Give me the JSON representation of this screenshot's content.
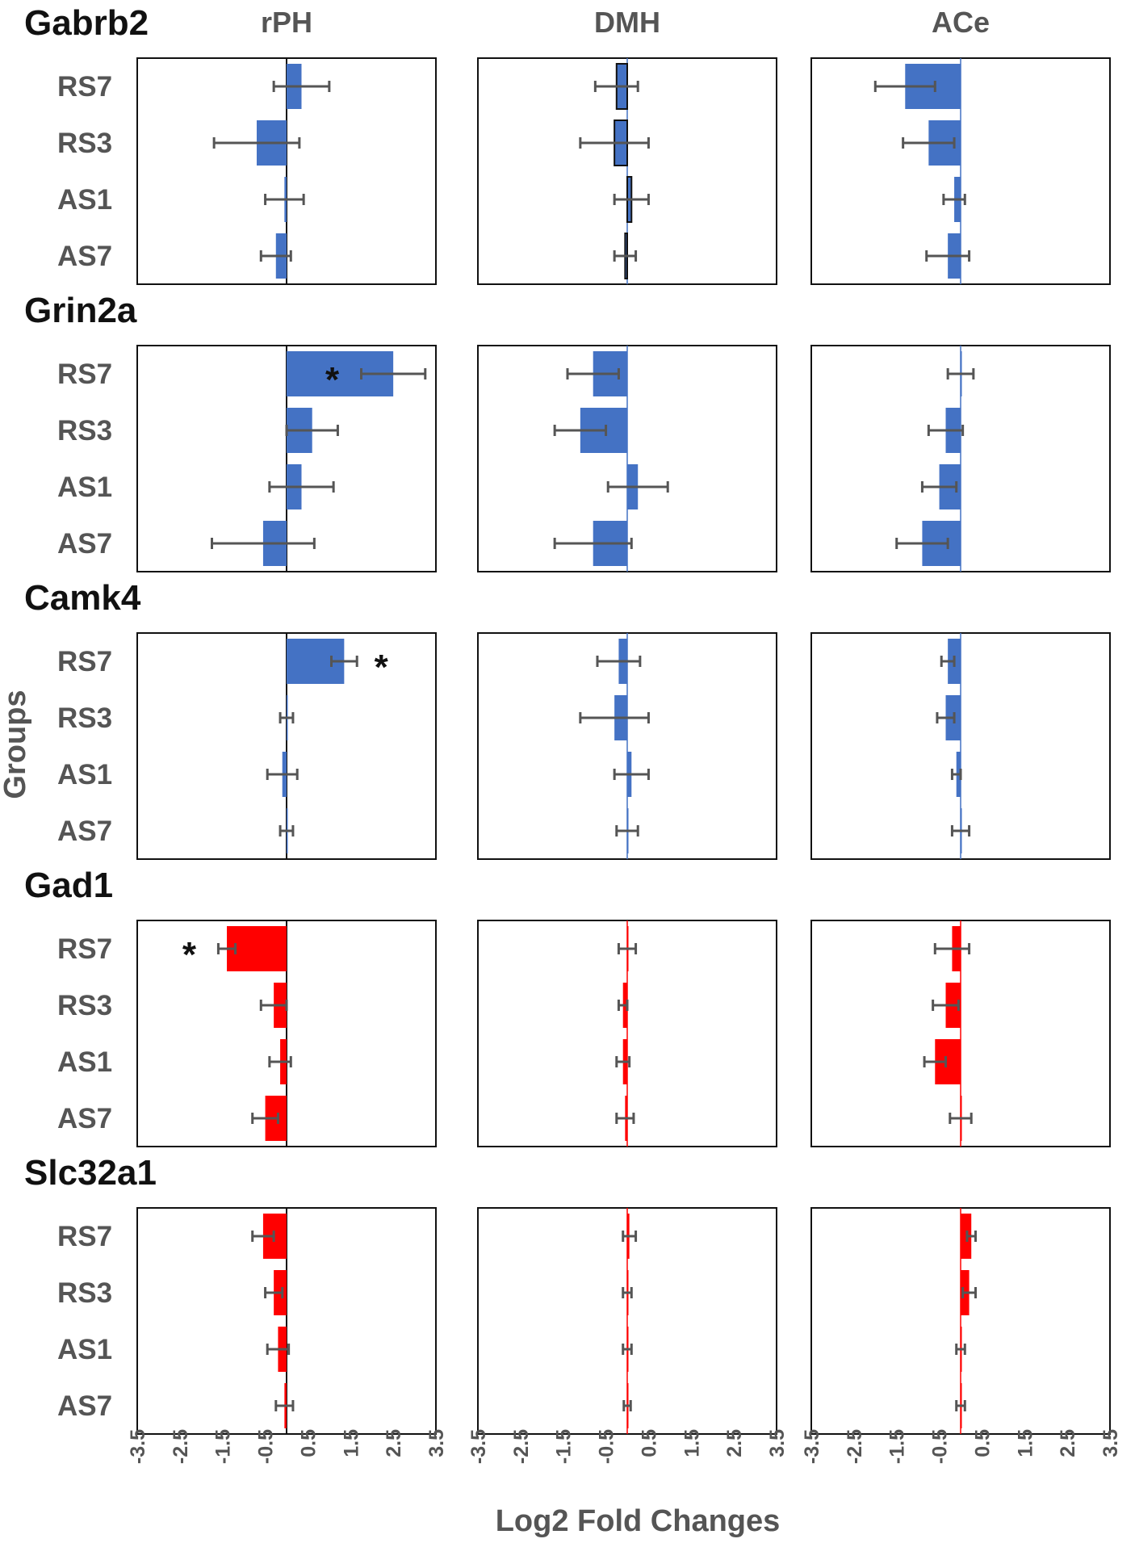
{
  "chart_data": {
    "type": "bar",
    "orientation": "horizontal",
    "xlabel": "Log2 Fold Changes",
    "ylabel": "Groups",
    "xlim": [
      -3.5,
      3.5
    ],
    "xticks": [
      -3.5,
      -2.5,
      -1.5,
      -0.5,
      0.5,
      1.5,
      2.5,
      3.5
    ],
    "xtick_labels": [
      "-3.5",
      "-2.5",
      "-1.5",
      "-0.5",
      "0.5",
      "1.5",
      "2.5",
      "3.5"
    ],
    "regions": [
      "rPH",
      "DMH",
      "ACe"
    ],
    "categories": [
      "RS7",
      "RS3",
      "AS1",
      "AS7"
    ],
    "genes": [
      {
        "name": "Gabrb2",
        "color": "#4472C4",
        "panels": [
          {
            "region": "rPH",
            "values": [
              0.35,
              -0.7,
              -0.05,
              -0.25
            ],
            "errors": [
              0.65,
              1.0,
              0.45,
              0.35
            ],
            "sig": [
              null,
              null,
              null,
              null
            ]
          },
          {
            "region": "DMH",
            "values": [
              -0.25,
              -0.3,
              0.1,
              -0.05
            ],
            "errors": [
              0.5,
              0.8,
              0.4,
              0.25
            ],
            "sig": [
              null,
              null,
              null,
              null
            ]
          },
          {
            "region": "ACe",
            "values": [
              -1.3,
              -0.75,
              -0.15,
              -0.3
            ],
            "errors": [
              0.7,
              0.6,
              0.25,
              0.5
            ],
            "sig": [
              null,
              null,
              null,
              null
            ]
          }
        ]
      },
      {
        "name": "Grin2a",
        "color": "#4472C4",
        "panels": [
          {
            "region": "rPH",
            "values": [
              2.5,
              0.6,
              0.35,
              -0.55
            ],
            "errors": [
              0.75,
              0.6,
              0.75,
              1.2
            ],
            "sig": [
              "left",
              null,
              null,
              null
            ]
          },
          {
            "region": "DMH",
            "values": [
              -0.8,
              -1.1,
              0.25,
              -0.8
            ],
            "errors": [
              0.6,
              0.6,
              0.7,
              0.9
            ],
            "sig": [
              null,
              null,
              null,
              null
            ]
          },
          {
            "region": "ACe",
            "values": [
              0.0,
              -0.35,
              -0.5,
              -0.9
            ],
            "errors": [
              0.3,
              0.4,
              0.4,
              0.6
            ],
            "sig": [
              null,
              null,
              null,
              null
            ]
          }
        ]
      },
      {
        "name": "Camk4",
        "color": "#4472C4",
        "panels": [
          {
            "region": "rPH",
            "values": [
              1.35,
              0.0,
              -0.1,
              0.0
            ],
            "errors": [
              0.3,
              0.15,
              0.35,
              0.15
            ],
            "sig": [
              "right",
              null,
              null,
              null
            ]
          },
          {
            "region": "DMH",
            "values": [
              -0.2,
              -0.3,
              0.1,
              0.0
            ],
            "errors": [
              0.5,
              0.8,
              0.4,
              0.25
            ],
            "sig": [
              null,
              null,
              null,
              null
            ]
          },
          {
            "region": "ACe",
            "values": [
              -0.3,
              -0.35,
              -0.1,
              0.0
            ],
            "errors": [
              0.15,
              0.2,
              0.1,
              0.2
            ],
            "sig": [
              null,
              null,
              null,
              null
            ]
          }
        ]
      },
      {
        "name": "Gad1",
        "color": "#FF0000",
        "panels": [
          {
            "region": "rPH",
            "values": [
              -1.4,
              -0.3,
              -0.15,
              -0.5
            ],
            "errors": [
              0.2,
              0.3,
              0.25,
              0.3
            ],
            "sig": [
              "left",
              null,
              null,
              null
            ]
          },
          {
            "region": "DMH",
            "values": [
              0.0,
              -0.1,
              -0.1,
              -0.05
            ],
            "errors": [
              0.2,
              0.1,
              0.15,
              0.2
            ],
            "sig": [
              null,
              null,
              null,
              null
            ]
          },
          {
            "region": "ACe",
            "values": [
              -0.2,
              -0.35,
              -0.6,
              0.0
            ],
            "errors": [
              0.4,
              0.3,
              0.25,
              0.25
            ],
            "sig": [
              null,
              null,
              null,
              null
            ]
          }
        ]
      },
      {
        "name": "Slc32a1",
        "color": "#FF0000",
        "panels": [
          {
            "region": "rPH",
            "values": [
              -0.55,
              -0.3,
              -0.2,
              -0.05
            ],
            "errors": [
              0.25,
              0.2,
              0.25,
              0.2
            ],
            "sig": [
              null,
              null,
              null,
              null
            ]
          },
          {
            "region": "DMH",
            "values": [
              0.05,
              0.0,
              0.0,
              0.0
            ],
            "errors": [
              0.15,
              0.1,
              0.1,
              0.08
            ],
            "sig": [
              null,
              null,
              null,
              null
            ]
          },
          {
            "region": "ACe",
            "values": [
              0.25,
              0.2,
              0.0,
              0.0
            ],
            "errors": [
              0.1,
              0.15,
              0.1,
              0.1
            ],
            "sig": [
              null,
              null,
              null,
              null
            ]
          }
        ]
      }
    ],
    "annotation_symbol": "*"
  }
}
